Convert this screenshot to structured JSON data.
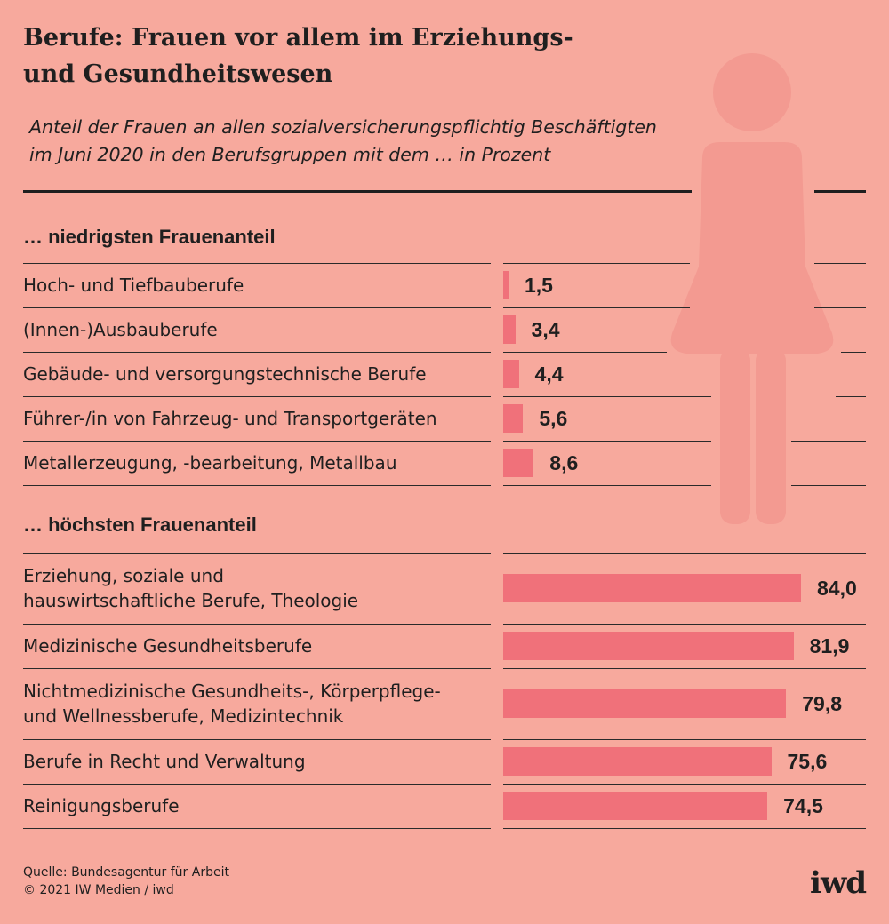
{
  "title_line1": "Berufe: Frauen vor allem im Erziehungs-",
  "title_line2": "und Gesundheitswesen",
  "subtitle_line1": "Anteil der Frauen an allen sozialversicherungspflichtig Beschäftigten",
  "subtitle_line2": "im Juni 2020 in den Berufsgruppen mit dem … in Prozent",
  "source_line1": "Quelle: Bundesagentur für Arbeit",
  "source_line2": "© 2021 IW Medien / iwd",
  "logo": "iwd",
  "colors": {
    "background": "#f7a99d",
    "bar": "#f0717a",
    "silhouette": "#f39a91",
    "text": "#1f1f1f"
  },
  "chart_data": {
    "type": "bar",
    "orientation": "horizontal",
    "groups": [
      {
        "name": "… niedrigsten Frauenanteil",
        "items": [
          {
            "label": "Hoch- und Tiefbauberufe",
            "value": 1.5,
            "display": "1,5"
          },
          {
            "label": "(Innen-)Ausbauberufe",
            "value": 3.4,
            "display": "3,4"
          },
          {
            "label": "Gebäude- und versorgungstechnische Berufe",
            "value": 4.4,
            "display": "4,4"
          },
          {
            "label": "Führer-/in von Fahrzeug- und Transportgeräten",
            "value": 5.6,
            "display": "5,6"
          },
          {
            "label": "Metallerzeugung, -bearbeitung, Metallbau",
            "value": 8.6,
            "display": "8,6"
          }
        ]
      },
      {
        "name": "… höchsten Frauenanteil",
        "items": [
          {
            "label": "Erziehung, soziale und\nhauswirtschaftliche Berufe, Theologie",
            "value": 84.0,
            "display": "84,0"
          },
          {
            "label": "Medizinische Gesundheitsberufe",
            "value": 81.9,
            "display": "81,9"
          },
          {
            "label": "Nichtmedizinische Gesundheits-, Körperpflege-\nund Wellnessberufe, Medizintechnik",
            "value": 79.8,
            "display": "79,8"
          },
          {
            "label": "Berufe in Recht und Verwaltung",
            "value": 75.6,
            "display": "75,6"
          },
          {
            "label": "Reinigungsberufe",
            "value": 74.5,
            "display": "74,5"
          }
        ]
      }
    ],
    "xlim": [
      0,
      84
    ]
  }
}
